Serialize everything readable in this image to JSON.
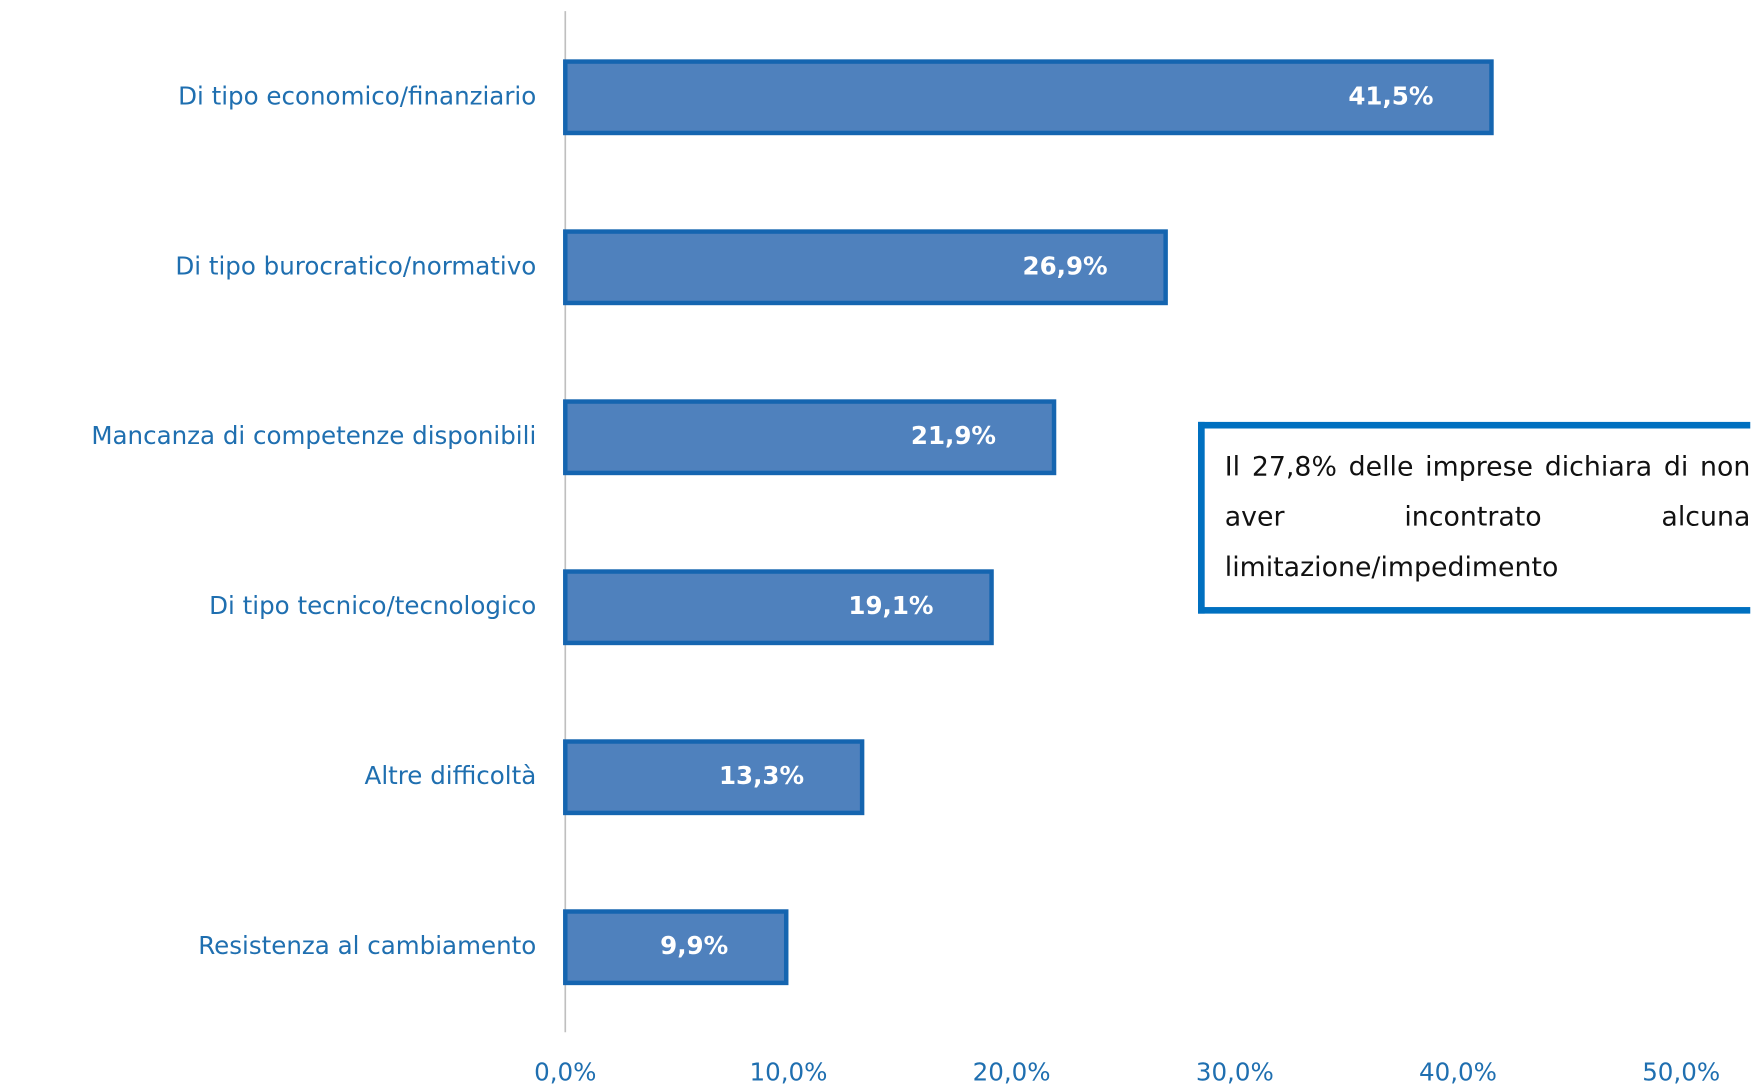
{
  "chart_data": {
    "type": "hbar",
    "categories": [
      "Di tipo economico/finanziario",
      "Di tipo burocratico/normativo",
      "Mancanza di competenze disponibili",
      "Di tipo tecnico/tecnologico",
      "Altre difficoltà",
      "Resistenza al cambiamento"
    ],
    "values": [
      41.5,
      26.9,
      21.9,
      19.1,
      13.3,
      9.9
    ],
    "value_labels": [
      "41,5%",
      "26,9%",
      "21,9%",
      "19,1%",
      "13,3%",
      "9,9%"
    ],
    "color": "#4f81bd",
    "xlim": [
      0,
      50
    ],
    "xticks": [
      {
        "value": 0,
        "label": "0,0%"
      },
      {
        "value": 10,
        "label": "10,0%"
      },
      {
        "value": 20,
        "label": "20,0%"
      },
      {
        "value": 30,
        "label": "30,0%"
      },
      {
        "value": 40,
        "label": "40,0%"
      },
      {
        "value": 50,
        "label": "50,0%"
      }
    ],
    "annotation": "Il 27,8% delle imprese dichiara di non aver incontrato alcuna limitazione/impedimento"
  }
}
